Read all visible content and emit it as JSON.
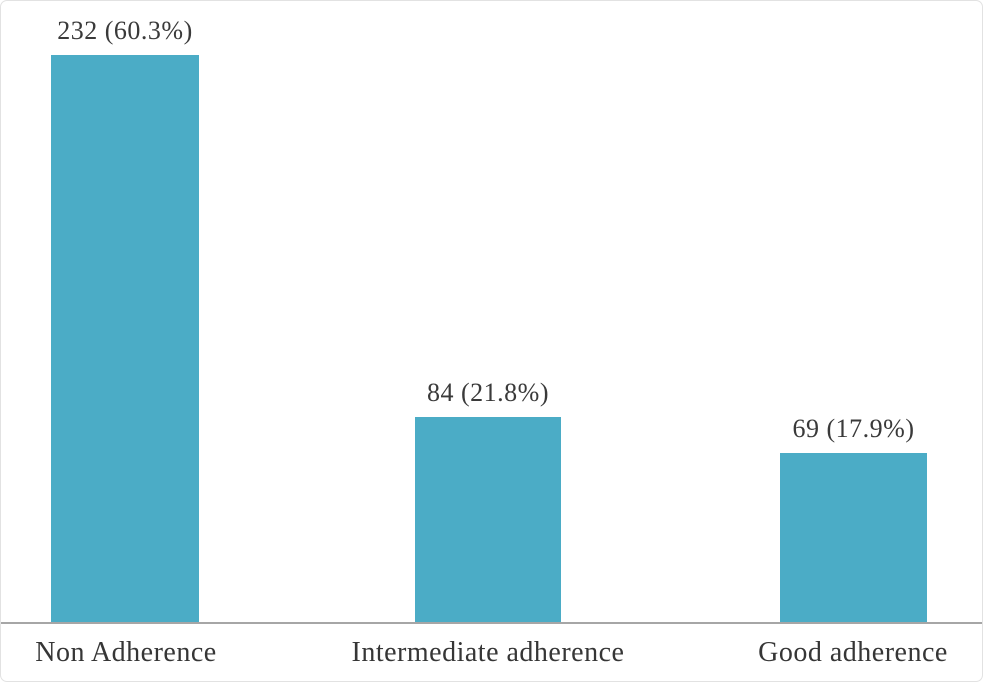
{
  "figure": {
    "background_color": "#ffffff",
    "border_color": "#e2e2e2"
  },
  "chart_data": {
    "type": "bar",
    "title": "",
    "categories": [
      "Non Adherence",
      "Intermediate adherence",
      "Good adherence"
    ],
    "values": [
      232,
      84,
      69
    ],
    "percentages": [
      "60.3%",
      "21.8%",
      "17.9%"
    ],
    "data_labels": [
      "232 (60.3%)",
      "84 (21.8%)",
      "69 (17.9%)"
    ],
    "bar_color": "#4bacc6",
    "axis_line_color": "#a6a6a6",
    "data_label_color": "#3a3a3a",
    "category_label_color": "#363636",
    "y_axis_visible": false,
    "grid": false,
    "legend": "none"
  }
}
